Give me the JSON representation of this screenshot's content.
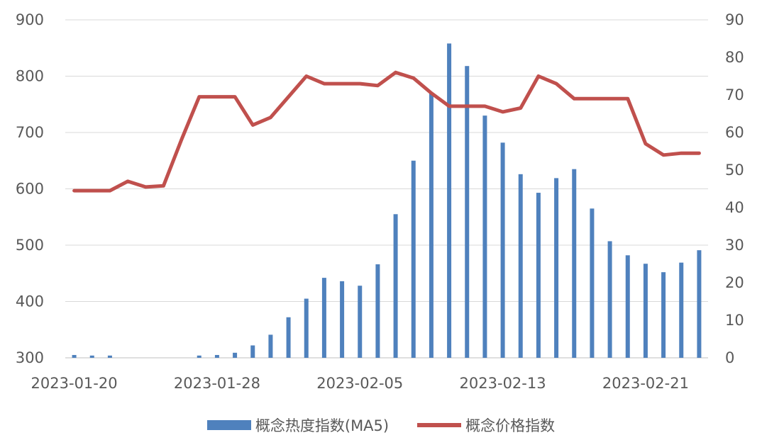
{
  "chart_data": {
    "type": "bar+line",
    "x": [
      "2023-01-20",
      "2023-01-21",
      "2023-01-22",
      "2023-01-23",
      "2023-01-24",
      "2023-01-25",
      "2023-01-26",
      "2023-01-27",
      "2023-01-28",
      "2023-01-29",
      "2023-01-30",
      "2023-01-31",
      "2023-02-01",
      "2023-02-02",
      "2023-02-03",
      "2023-02-04",
      "2023-02-05",
      "2023-02-06",
      "2023-02-07",
      "2023-02-08",
      "2023-02-09",
      "2023-02-10",
      "2023-02-11",
      "2023-02-12",
      "2023-02-13",
      "2023-02-14",
      "2023-02-15",
      "2023-02-16",
      "2023-02-17",
      "2023-02-18",
      "2023-02-19",
      "2023-02-20",
      "2023-02-21",
      "2023-02-22",
      "2023-02-23",
      "2023-02-24"
    ],
    "x_tick_labels": [
      "2023-01-20",
      "2023-01-28",
      "2023-02-05",
      "2023-02-13",
      "2023-02-21"
    ],
    "series": [
      {
        "name": "概念热度指数(MA5)",
        "type": "bar",
        "axis": "left",
        "color": "#4f81bd",
        "values": [
          305,
          304,
          304,
          null,
          null,
          null,
          null,
          304,
          305,
          309,
          322,
          341,
          372,
          405,
          442,
          436,
          428,
          466,
          555,
          650,
          770,
          858,
          818,
          730,
          682,
          626,
          593,
          619,
          635,
          565,
          507,
          482,
          467,
          452,
          469,
          491
        ]
      },
      {
        "name": "概念价格指数",
        "type": "line",
        "axis": "right",
        "color": "#c0504d",
        "values": [
          44.5,
          44.5,
          44.5,
          47,
          45.5,
          45.8,
          58,
          69.5,
          69.5,
          69.5,
          62,
          64,
          69.5,
          75,
          73,
          73,
          73,
          72.5,
          76,
          74.5,
          70.5,
          67,
          67,
          67,
          65.5,
          66.5,
          75,
          73,
          69,
          69,
          69,
          69,
          57,
          54,
          54.5,
          54.5
        ]
      }
    ],
    "y_left": {
      "ylim": [
        300,
        900
      ],
      "ticks": [
        900,
        800,
        700,
        600,
        500,
        400,
        300
      ]
    },
    "y_right": {
      "ylim": [
        0,
        90
      ],
      "ticks": [
        90,
        80,
        70,
        60,
        50,
        40,
        30,
        20,
        10,
        0
      ]
    },
    "grid": true,
    "legend_position": "bottom"
  }
}
